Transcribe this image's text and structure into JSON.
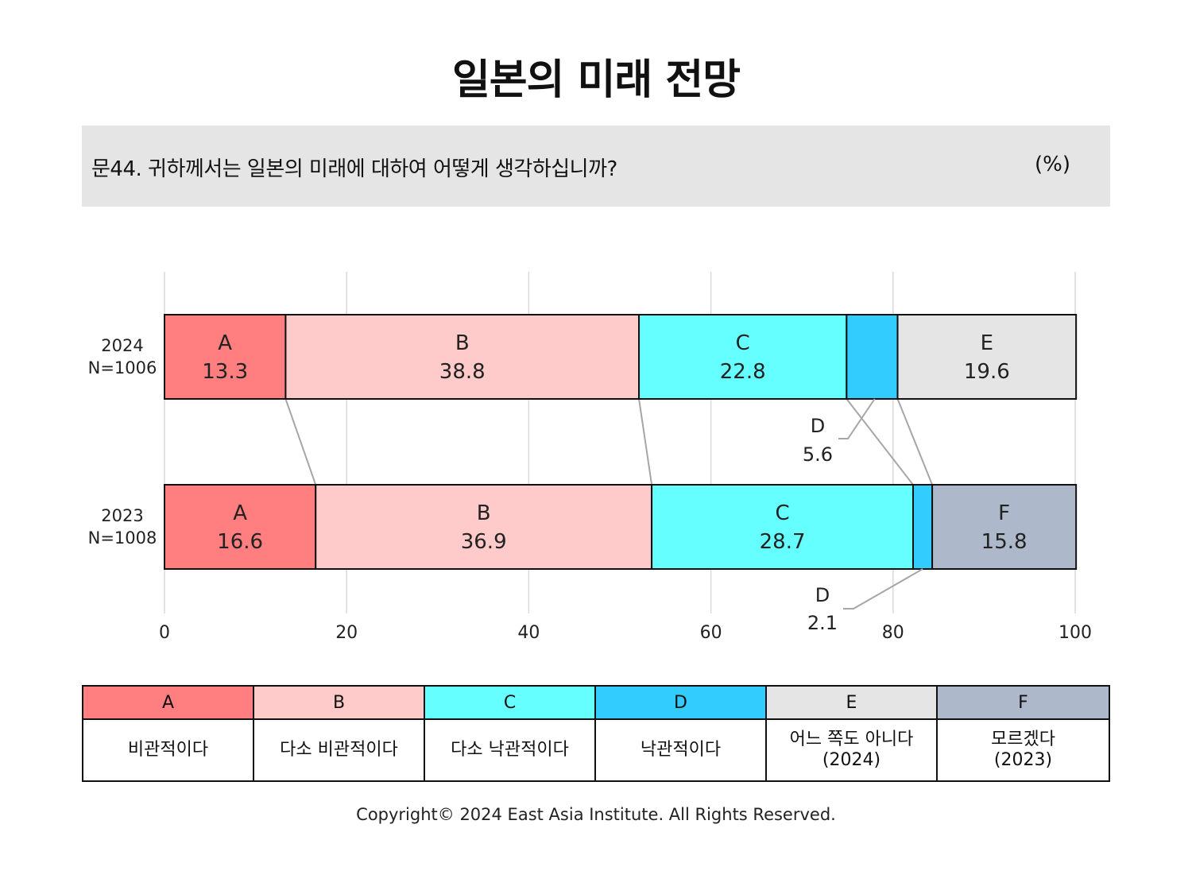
{
  "title": "일본의 미래 전망",
  "question": "문44. 귀하께서는 일본의 미래에 대하여 어떻게 생각하십니까?",
  "unit": "(%)",
  "chart_data": {
    "type": "bar",
    "orientation": "horizontal-stacked",
    "xlim": [
      0,
      100
    ],
    "x_ticks": [
      "0",
      "20",
      "40",
      "60",
      "80",
      "100"
    ],
    "grid": true,
    "rows": [
      {
        "label_year": "2024",
        "label_n": "N=1006",
        "segments": [
          {
            "code": "A",
            "value": 13.3,
            "value_label": "13.3"
          },
          {
            "code": "B",
            "value": 38.8,
            "value_label": "38.8"
          },
          {
            "code": "C",
            "value": 22.8,
            "value_label": "22.8"
          },
          {
            "code": "D",
            "value": 5.6,
            "value_label": "5.6"
          },
          {
            "code": "E",
            "value": 19.6,
            "value_label": "19.6"
          }
        ]
      },
      {
        "label_year": "2023",
        "label_n": "N=1008",
        "segments": [
          {
            "code": "A",
            "value": 16.6,
            "value_label": "16.6"
          },
          {
            "code": "B",
            "value": 36.9,
            "value_label": "36.9"
          },
          {
            "code": "C",
            "value": 28.7,
            "value_label": "28.7"
          },
          {
            "code": "D",
            "value": 2.1,
            "value_label": "2.1"
          },
          {
            "code": "F",
            "value": 15.8,
            "value_label": "15.8"
          }
        ]
      }
    ],
    "colors": {
      "A": "#ff7f80",
      "B": "#ffcaca",
      "C": "#66ffff",
      "D": "#33ccff",
      "E": "#e6e5e6",
      "F": "#adb9ca"
    }
  },
  "legend": [
    {
      "code": "A",
      "label": "비관적이다"
    },
    {
      "code": "B",
      "label": "다소 비관적이다"
    },
    {
      "code": "C",
      "label": "다소 낙관적이다"
    },
    {
      "code": "D",
      "label": "낙관적이다"
    },
    {
      "code": "E",
      "label": "어느 쪽도 아니다\n(2024)"
    },
    {
      "code": "F",
      "label": "모르겠다\n(2023)"
    }
  ],
  "copyright": "Copyright© 2024 East Asia Institute. All Rights Reserved."
}
